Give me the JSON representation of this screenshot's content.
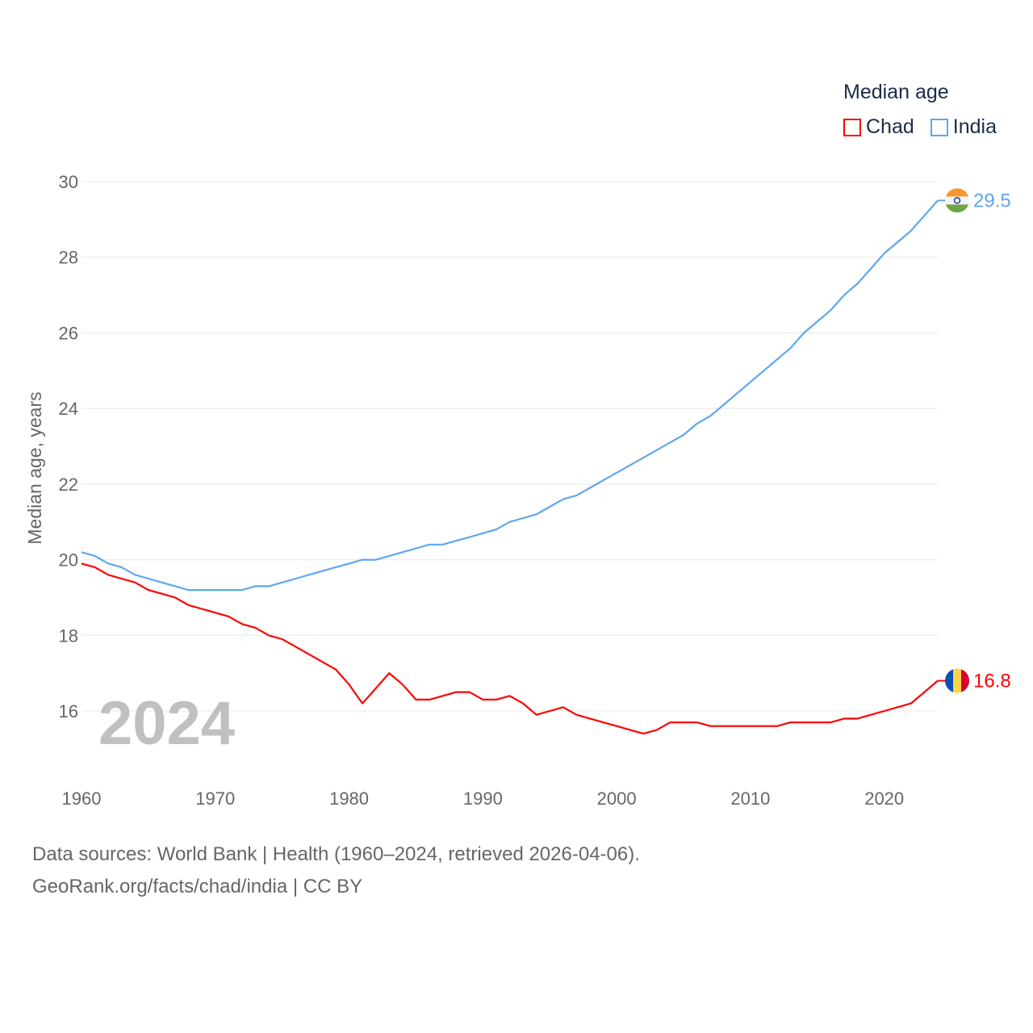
{
  "chart_data": {
    "type": "line",
    "title": "Median age",
    "ylabel": "Median age, years",
    "xlabel": "",
    "xlim": [
      1960,
      2024
    ],
    "ylim": [
      14.7,
      30
    ],
    "yticks": [
      16,
      18,
      20,
      22,
      24,
      26,
      28,
      30
    ],
    "xticks": [
      1960,
      1970,
      1980,
      1990,
      2000,
      2010,
      2020
    ],
    "grid": true,
    "legend_position": "top-right",
    "year_label": "2024",
    "x": [
      1960,
      1961,
      1962,
      1963,
      1964,
      1965,
      1966,
      1967,
      1968,
      1969,
      1970,
      1971,
      1972,
      1973,
      1974,
      1975,
      1976,
      1977,
      1978,
      1979,
      1980,
      1981,
      1982,
      1983,
      1984,
      1985,
      1986,
      1987,
      1988,
      1989,
      1990,
      1991,
      1992,
      1993,
      1994,
      1995,
      1996,
      1997,
      1998,
      1999,
      2000,
      2001,
      2002,
      2003,
      2004,
      2005,
      2006,
      2007,
      2008,
      2009,
      2010,
      2011,
      2012,
      2013,
      2014,
      2015,
      2016,
      2017,
      2018,
      2019,
      2020,
      2021,
      2022,
      2023,
      2024
    ],
    "series": [
      {
        "name": "Chad",
        "color": "#ff0000",
        "end_label": "16.8",
        "values": [
          19.9,
          19.8,
          19.6,
          19.5,
          19.4,
          19.2,
          19.1,
          19.0,
          18.8,
          18.7,
          18.6,
          18.5,
          18.3,
          18.2,
          18.0,
          17.9,
          17.7,
          17.5,
          17.3,
          17.1,
          16.7,
          16.2,
          16.6,
          17.0,
          16.7,
          16.3,
          16.3,
          16.4,
          16.5,
          16.5,
          16.3,
          16.3,
          16.4,
          16.2,
          15.9,
          16.0,
          16.1,
          15.9,
          15.8,
          15.7,
          15.6,
          15.5,
          15.4,
          15.5,
          15.7,
          15.7,
          15.7,
          15.6,
          15.6,
          15.6,
          15.6,
          15.6,
          15.6,
          15.7,
          15.7,
          15.7,
          15.7,
          15.8,
          15.8,
          15.9,
          16.0,
          16.1,
          16.2,
          16.5,
          16.8
        ]
      },
      {
        "name": "India",
        "color": "#5fa6ef",
        "end_label": "29.5",
        "values": [
          20.2,
          20.1,
          19.9,
          19.8,
          19.6,
          19.5,
          19.4,
          19.3,
          19.2,
          19.2,
          19.2,
          19.2,
          19.2,
          19.3,
          19.3,
          19.4,
          19.5,
          19.6,
          19.7,
          19.8,
          19.9,
          20.0,
          20.0,
          20.1,
          20.2,
          20.3,
          20.4,
          20.4,
          20.5,
          20.6,
          20.7,
          20.8,
          21.0,
          21.1,
          21.2,
          21.4,
          21.6,
          21.7,
          21.9,
          22.1,
          22.3,
          22.5,
          22.7,
          22.9,
          23.1,
          23.3,
          23.6,
          23.8,
          24.1,
          24.4,
          24.7,
          25.0,
          25.3,
          25.6,
          26.0,
          26.3,
          26.6,
          27.0,
          27.3,
          27.7,
          28.1,
          28.4,
          28.7,
          29.1,
          29.5
        ]
      }
    ]
  },
  "footer": {
    "line1": "Data sources: World Bank | Health (1960–2024, retrieved 2026-04-06).",
    "line2": "GeoRank.org/facts/chad/india | CC BY"
  }
}
